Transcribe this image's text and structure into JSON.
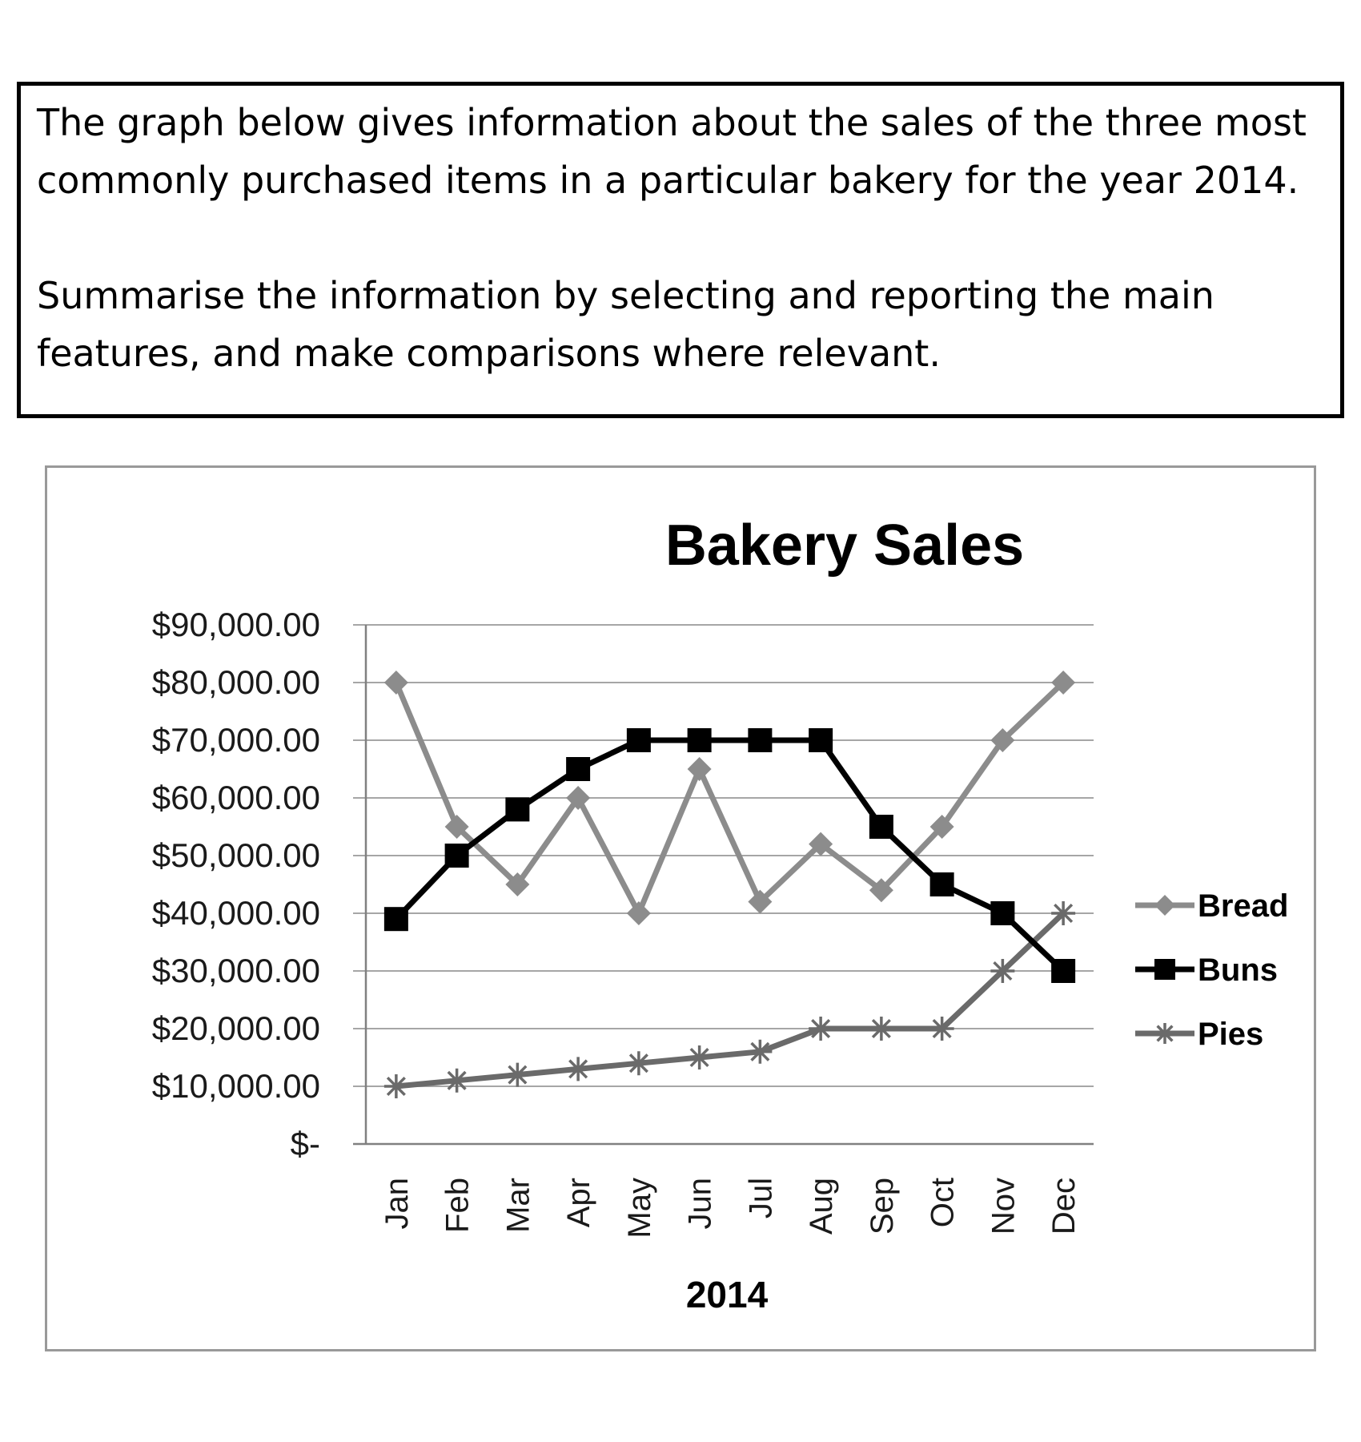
{
  "task": {
    "line1": "The graph below gives information about the sales of the three most",
    "line2": "commonly purchased items in a particular bakery for the year 2014.",
    "line3": "Summarise the information by selecting and reporting the main",
    "line4": "features, and make comparisons where relevant."
  },
  "chart_data": {
    "type": "line",
    "title": "Bakery Sales",
    "xlabel": "2014",
    "ylabel": "",
    "ylim": [
      0,
      90000
    ],
    "yticks": [
      0,
      10000,
      20000,
      30000,
      40000,
      50000,
      60000,
      70000,
      80000,
      90000
    ],
    "ytick_labels": [
      "$-",
      "$10,000.00",
      "$20,000.00",
      "$30,000.00",
      "$40,000.00",
      "$50,000.00",
      "$60,000.00",
      "$70,000.00",
      "$80,000.00",
      "$90,000.00"
    ],
    "categories": [
      "Jan",
      "Feb",
      "Mar",
      "Apr",
      "May",
      "Jun",
      "Jul",
      "Aug",
      "Sep",
      "Oct",
      "Nov",
      "Dec"
    ],
    "grid": true,
    "legend": "right",
    "series": [
      {
        "name": "Bread",
        "marker": "diamond",
        "color": "#8c8c8c",
        "values": [
          80000,
          55000,
          45000,
          60000,
          40000,
          65000,
          42000,
          52000,
          44000,
          55000,
          70000,
          80000
        ]
      },
      {
        "name": "Buns",
        "marker": "square",
        "color": "#000000",
        "values": [
          39000,
          50000,
          58000,
          65000,
          70000,
          70000,
          70000,
          70000,
          55000,
          45000,
          40000,
          30000
        ]
      },
      {
        "name": "Pies",
        "marker": "star",
        "color": "#6a6a6a",
        "values": [
          10000,
          11000,
          12000,
          13000,
          14000,
          15000,
          16000,
          20000,
          20000,
          20000,
          30000,
          40000
        ]
      }
    ]
  }
}
